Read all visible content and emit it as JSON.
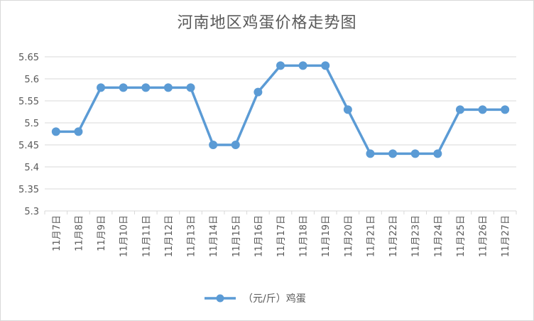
{
  "chart_data": {
    "type": "line",
    "title": "河南地区鸡蛋价格走势图",
    "categories": [
      "11月7日",
      "11月8日",
      "11月9日",
      "11月10日",
      "11月11日",
      "11月12日",
      "11月13日",
      "11月14日",
      "11月15日",
      "11月16日",
      "11月17日",
      "11月18日",
      "11月19日",
      "11月20日",
      "11月21日",
      "11月22日",
      "11月23日",
      "11月24日",
      "11月25日",
      "11月26日",
      "11月27日"
    ],
    "series": [
      {
        "name": "（元/斤）鸡蛋",
        "values": [
          5.48,
          5.48,
          5.58,
          5.58,
          5.58,
          5.58,
          5.58,
          5.45,
          5.45,
          5.57,
          5.63,
          5.63,
          5.63,
          5.53,
          5.43,
          5.43,
          5.43,
          5.43,
          5.53,
          5.53,
          5.53
        ]
      }
    ],
    "ylim": [
      5.3,
      5.65
    ],
    "yticks": [
      "5.3",
      "5.35",
      "5.4",
      "5.45",
      "5.5",
      "5.55",
      "5.6",
      "5.65"
    ],
    "grid": true,
    "legend": "bottom",
    "color": "#5b9bd5"
  }
}
